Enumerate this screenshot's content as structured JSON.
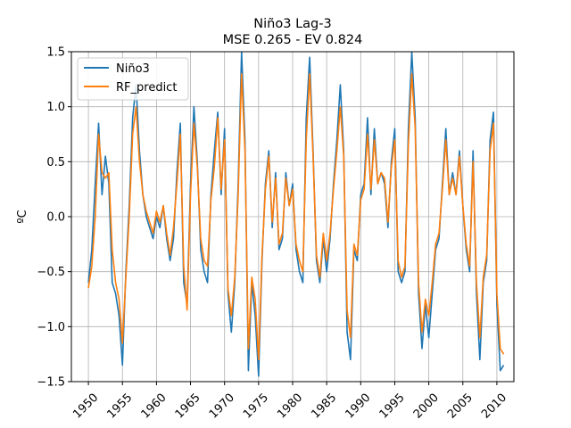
{
  "chart_data": {
    "type": "line",
    "title": "Niño3 Lag-3",
    "subtitle": "MSE 0.265 - EV 0.824",
    "xlabel": "",
    "ylabel": "ºC",
    "xlim": [
      1947.5,
      2012.5
    ],
    "ylim": [
      -1.5,
      1.5
    ],
    "x_ticks": [
      1950,
      1955,
      1960,
      1965,
      1970,
      1975,
      1980,
      1985,
      1990,
      1995,
      2000,
      2005,
      2010
    ],
    "y_ticks": [
      -1.5,
      -1.0,
      -0.5,
      0.0,
      0.5,
      1.0,
      1.5
    ],
    "y_tick_labels": [
      "−1.5",
      "−1.0",
      "−0.5",
      "0.0",
      "0.5",
      "1.0",
      "1.5"
    ],
    "grid": true,
    "legend_position": "top-left",
    "x": [
      1950.0,
      1950.5,
      1951.0,
      1951.5,
      1952.0,
      1952.5,
      1953.0,
      1953.5,
      1954.0,
      1954.5,
      1955.0,
      1955.5,
      1956.0,
      1956.5,
      1957.0,
      1957.5,
      1958.0,
      1958.5,
      1959.0,
      1959.5,
      1960.0,
      1960.5,
      1961.0,
      1961.5,
      1962.0,
      1962.5,
      1963.0,
      1963.5,
      1964.0,
      1964.5,
      1965.0,
      1965.5,
      1966.0,
      1966.5,
      1967.0,
      1967.5,
      1968.0,
      1968.5,
      1969.0,
      1969.5,
      1970.0,
      1970.5,
      1971.0,
      1971.5,
      1972.0,
      1972.5,
      1973.0,
      1973.5,
      1974.0,
      1974.5,
      1975.0,
      1975.5,
      1976.0,
      1976.5,
      1977.0,
      1977.5,
      1978.0,
      1978.5,
      1979.0,
      1979.5,
      1980.0,
      1980.5,
      1981.0,
      1981.5,
      1982.0,
      1982.5,
      1983.0,
      1983.5,
      1984.0,
      1984.5,
      1985.0,
      1985.5,
      1986.0,
      1986.5,
      1987.0,
      1987.5,
      1988.0,
      1988.5,
      1989.0,
      1989.5,
      1990.0,
      1990.5,
      1991.0,
      1991.5,
      1992.0,
      1992.5,
      1993.0,
      1993.5,
      1994.0,
      1994.5,
      1995.0,
      1995.5,
      1996.0,
      1996.5,
      1997.0,
      1997.5,
      1998.0,
      1998.5,
      1999.0,
      1999.5,
      2000.0,
      2000.5,
      2001.0,
      2001.5,
      2002.0,
      2002.5,
      2003.0,
      2003.5,
      2004.0,
      2004.5,
      2005.0,
      2005.5,
      2006.0,
      2006.5,
      2007.0,
      2007.5,
      2008.0,
      2008.5,
      2009.0,
      2009.5,
      2010.0,
      2010.5,
      2011.0
    ],
    "series": [
      {
        "name": "Niño3",
        "color": "#1f77b4",
        "values": [
          -0.6,
          -0.3,
          0.3,
          0.85,
          0.2,
          0.55,
          0.3,
          -0.6,
          -0.7,
          -0.9,
          -1.35,
          -0.5,
          0.1,
          0.9,
          1.2,
          0.6,
          0.2,
          0.0,
          -0.1,
          -0.2,
          0.0,
          -0.1,
          0.1,
          -0.2,
          -0.4,
          -0.2,
          0.4,
          0.85,
          -0.6,
          -0.8,
          0.3,
          1.0,
          0.5,
          -0.3,
          -0.5,
          -0.6,
          0.2,
          0.6,
          0.95,
          0.2,
          0.8,
          -0.7,
          -1.05,
          -0.6,
          0.3,
          1.5,
          0.7,
          -1.4,
          -0.6,
          -0.9,
          -1.45,
          -0.4,
          0.3,
          0.6,
          -0.1,
          0.4,
          -0.3,
          -0.2,
          0.4,
          0.1,
          0.3,
          -0.3,
          -0.5,
          -0.6,
          0.9,
          1.45,
          0.6,
          -0.4,
          -0.6,
          -0.2,
          -0.5,
          -0.2,
          0.3,
          0.7,
          1.2,
          0.6,
          -1.05,
          -1.3,
          -0.3,
          -0.4,
          0.2,
          0.3,
          0.9,
          0.2,
          0.8,
          0.3,
          0.4,
          0.3,
          -0.1,
          0.5,
          0.8,
          -0.5,
          -0.6,
          -0.5,
          0.8,
          1.5,
          0.9,
          -0.7,
          -1.2,
          -0.8,
          -1.1,
          -0.7,
          -0.3,
          -0.2,
          0.3,
          0.8,
          0.2,
          0.4,
          0.2,
          0.6,
          0.1,
          -0.3,
          -0.5,
          0.6,
          -0.7,
          -1.3,
          -0.6,
          -0.4,
          0.7,
          0.95,
          -0.8,
          -1.4,
          -1.35
        ]
      },
      {
        "name": "RF_predict",
        "color": "#ff7f0e",
        "values": [
          -0.65,
          -0.45,
          0.0,
          0.75,
          0.4,
          0.35,
          0.4,
          -0.3,
          -0.6,
          -0.75,
          -1.15,
          -0.55,
          0.0,
          0.75,
          1.0,
          0.5,
          0.2,
          0.05,
          -0.05,
          -0.15,
          0.05,
          -0.05,
          0.1,
          -0.15,
          -0.35,
          -0.1,
          0.3,
          0.75,
          -0.45,
          -0.85,
          0.2,
          0.85,
          0.45,
          -0.2,
          -0.4,
          -0.45,
          0.15,
          0.45,
          0.9,
          0.25,
          0.7,
          -0.65,
          -0.9,
          -0.55,
          0.2,
          1.3,
          0.6,
          -1.2,
          -0.55,
          -0.75,
          -1.3,
          -0.35,
          0.25,
          0.55,
          -0.05,
          0.35,
          -0.25,
          -0.15,
          0.35,
          0.1,
          0.25,
          -0.25,
          -0.4,
          -0.5,
          0.7,
          1.3,
          0.55,
          -0.35,
          -0.55,
          -0.15,
          -0.4,
          -0.15,
          0.25,
          0.6,
          1.0,
          0.55,
          -0.85,
          -1.1,
          -0.25,
          -0.35,
          0.15,
          0.25,
          0.75,
          0.25,
          0.7,
          0.3,
          0.4,
          0.35,
          -0.05,
          0.45,
          0.7,
          -0.4,
          -0.55,
          -0.45,
          0.65,
          1.3,
          0.8,
          -0.6,
          -1.05,
          -0.75,
          -0.9,
          -0.6,
          -0.25,
          -0.15,
          0.25,
          0.7,
          0.2,
          0.35,
          0.2,
          0.55,
          0.1,
          -0.25,
          -0.45,
          0.5,
          -0.6,
          -1.1,
          -0.55,
          -0.35,
          0.6,
          0.85,
          -0.7,
          -1.2,
          -1.25
        ]
      }
    ]
  }
}
